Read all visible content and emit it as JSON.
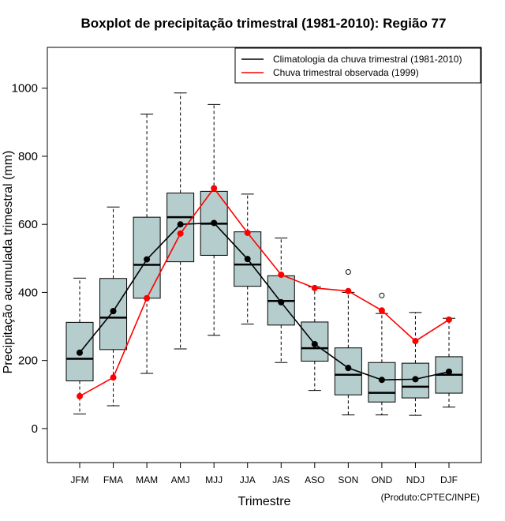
{
  "chart_data": {
    "type": "boxplot",
    "title": "Boxplot de precipitação trimestral (1981-2010): Região 77",
    "xlabel": "Trimestre",
    "ylabel": "Precipitação acumulada trimestral (mm)",
    "ylim": [
      -100,
      1120
    ],
    "yticks": [
      0,
      200,
      400,
      600,
      800,
      1000
    ],
    "grid": false,
    "legend_position": "top-right",
    "credit": "(Produto:CPTEC/INPE)",
    "categories": [
      "JFM",
      "FMA",
      "MAM",
      "AMJ",
      "MJJ",
      "JJA",
      "JAS",
      "ASO",
      "SON",
      "OND",
      "NDJ",
      "DJF"
    ],
    "boxes": [
      {
        "whisker_low": 43,
        "q1": 140,
        "median": 205,
        "q3": 312,
        "whisker_high": 442,
        "outliers": []
      },
      {
        "whisker_low": 67,
        "q1": 232,
        "median": 326,
        "q3": 441,
        "whisker_high": 651,
        "outliers": []
      },
      {
        "whisker_low": 162,
        "q1": 383,
        "median": 481,
        "q3": 621,
        "whisker_high": 924,
        "outliers": []
      },
      {
        "whisker_low": 234,
        "q1": 490,
        "median": 621,
        "q3": 692,
        "whisker_high": 986,
        "outliers": []
      },
      {
        "whisker_low": 274,
        "q1": 509,
        "median": 602,
        "q3": 697,
        "whisker_high": 952,
        "outliers": []
      },
      {
        "whisker_low": 307,
        "q1": 418,
        "median": 482,
        "q3": 578,
        "whisker_high": 689,
        "outliers": []
      },
      {
        "whisker_low": 194,
        "q1": 304,
        "median": 375,
        "q3": 449,
        "whisker_high": 560,
        "outliers": []
      },
      {
        "whisker_low": 112,
        "q1": 198,
        "median": 236,
        "q3": 313,
        "whisker_high": 416,
        "outliers": []
      },
      {
        "whisker_low": 40,
        "q1": 99,
        "median": 158,
        "q3": 237,
        "whisker_high": 400,
        "outliers": [
          460
        ]
      },
      {
        "whisker_low": 40,
        "q1": 78,
        "median": 105,
        "q3": 194,
        "whisker_high": 338,
        "outliers": [
          391
        ]
      },
      {
        "whisker_low": 39,
        "q1": 90,
        "median": 123,
        "q3": 192,
        "whisker_high": 341,
        "outliers": []
      },
      {
        "whisker_low": 63,
        "q1": 104,
        "median": 158,
        "q3": 211,
        "whisker_high": 324,
        "outliers": []
      }
    ],
    "series": [
      {
        "name": "Climatologia da chuva trimestral (1981-2010)",
        "color": "#000000",
        "values": [
          223,
          345,
          497,
          600,
          604,
          498,
          371,
          248,
          178,
          143,
          145,
          167
        ]
      },
      {
        "name": "Chuva trimestral observada (1999)",
        "color": "#ff0000",
        "values": [
          95,
          150,
          383,
          573,
          706,
          575,
          452,
          413,
          404,
          347,
          257,
          320
        ]
      }
    ],
    "box_fill": "#b5cdcd"
  }
}
